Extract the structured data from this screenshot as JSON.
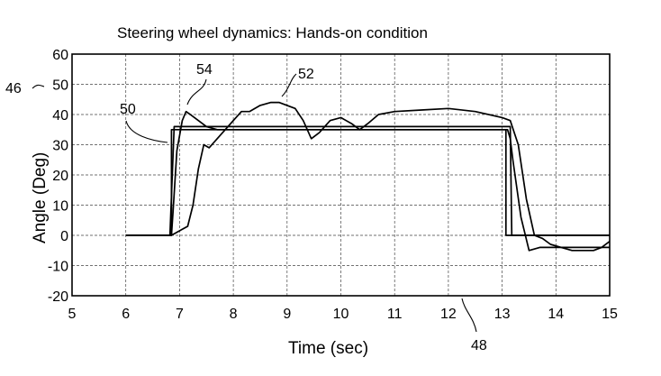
{
  "chart_data": {
    "type": "line",
    "title": "Steering wheel dynamics: Hands-on condition",
    "xlabel": "Time (sec)",
    "ylabel": "Angle (Deg)",
    "xlim": [
      5,
      15
    ],
    "ylim": [
      -20,
      60
    ],
    "xticks": [
      "5",
      "6",
      "7",
      "8",
      "9",
      "10",
      "11",
      "12",
      "13",
      "14",
      "15"
    ],
    "yticks": [
      "60",
      "50",
      "40",
      "30",
      "20",
      "10",
      "0",
      "-10",
      "-20"
    ],
    "grid": true,
    "series": [
      {
        "name": "50",
        "x": [
          6.0,
          6.85,
          6.85,
          13.07,
          13.07,
          15.0
        ],
        "y": [
          0,
          0,
          35,
          35,
          0,
          0
        ]
      },
      {
        "name": "48",
        "x": [
          6.0,
          6.82,
          6.9,
          13.15,
          13.18,
          15.0
        ],
        "y": [
          0,
          0,
          36,
          36,
          0,
          0
        ]
      },
      {
        "name": "54",
        "x": [
          6.0,
          6.85,
          6.88,
          6.95,
          7.05,
          7.12,
          7.2,
          7.35,
          7.5,
          7.7,
          8.0,
          8.5,
          9.0,
          9.5,
          10.0,
          10.3,
          10.5,
          11.0,
          11.5,
          12.0,
          12.5,
          13.0,
          13.1,
          13.15,
          13.2,
          13.35,
          13.5,
          13.7,
          14.0,
          14.5,
          15.0
        ],
        "y": [
          0,
          0,
          8,
          28,
          38,
          41,
          40,
          38,
          36,
          35,
          35,
          35,
          35,
          35,
          35,
          35,
          35,
          35,
          35,
          35,
          35,
          35,
          35,
          32,
          25,
          6,
          -5,
          -4,
          -4,
          -4,
          -4
        ]
      },
      {
        "name": "52",
        "x": [
          6.0,
          6.85,
          6.95,
          7.05,
          7.15,
          7.25,
          7.35,
          7.45,
          7.55,
          7.7,
          7.85,
          8.0,
          8.15,
          8.3,
          8.5,
          8.7,
          8.85,
          9.0,
          9.15,
          9.3,
          9.45,
          9.6,
          9.8,
          10.0,
          10.2,
          10.35,
          10.5,
          10.7,
          11.0,
          11.5,
          12.0,
          12.5,
          13.0,
          13.15,
          13.3,
          13.45,
          13.6,
          13.75,
          13.9,
          14.1,
          14.3,
          14.5,
          14.7,
          14.85,
          15.0
        ],
        "y": [
          0,
          0,
          1,
          2,
          3,
          10,
          22,
          30,
          29,
          32,
          35,
          38,
          41,
          41,
          43,
          44,
          44,
          43,
          42,
          38,
          32,
          34,
          38,
          39,
          37,
          35,
          37,
          40,
          41,
          41.5,
          42,
          41,
          39,
          38,
          30,
          12,
          0,
          -1,
          -3,
          -4,
          -5,
          -5,
          -5,
          -4,
          -2
        ]
      }
    ],
    "annotations": [
      {
        "text": "46",
        "points_to": "y-axis tick 50"
      },
      {
        "text": "54",
        "points_to": "series 54 overshoot peak"
      },
      {
        "text": "52",
        "points_to": "series 52 near t=8.9"
      },
      {
        "text": "50",
        "points_to": "series 50 plateau"
      },
      {
        "text": "48",
        "points_to": "series 48 bottom near t=12.2"
      }
    ]
  }
}
